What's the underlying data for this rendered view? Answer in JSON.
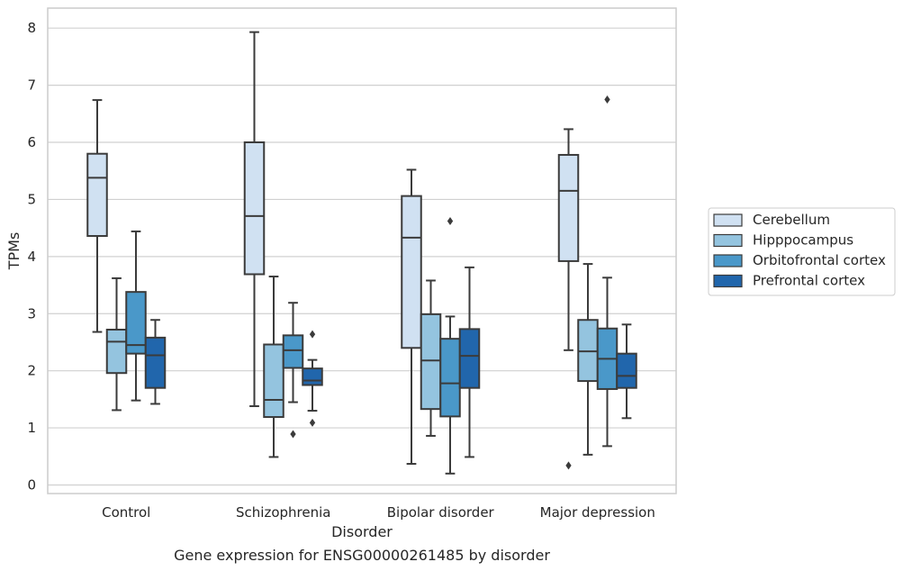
{
  "chart_data": {
    "type": "box",
    "caption": "Gene expression for ENSG00000261485 by disorder",
    "xlabel": "Disorder",
    "ylabel": "TPMs",
    "ylim": [
      -0.15,
      8.35
    ],
    "yticks": [
      0,
      1,
      2,
      3,
      4,
      5,
      6,
      7,
      8
    ],
    "grid": "horizontal",
    "legend_position": "right",
    "categories": [
      "Control",
      "Schizophrenia",
      "Bipolar disorder",
      "Major depression"
    ],
    "series": [
      {
        "name": "Cerebellum",
        "color": "#d0e1f2",
        "boxes": [
          {
            "whislo": 2.68,
            "q1": 4.36,
            "med": 5.38,
            "q3": 5.8,
            "whishi": 6.74,
            "fliers": []
          },
          {
            "whislo": 1.38,
            "q1": 3.69,
            "med": 4.71,
            "q3": 6.0,
            "whishi": 7.93,
            "fliers": []
          },
          {
            "whislo": 0.37,
            "q1": 2.4,
            "med": 4.33,
            "q3": 5.06,
            "whishi": 5.52,
            "fliers": []
          },
          {
            "whislo": 2.36,
            "q1": 3.92,
            "med": 5.15,
            "q3": 5.78,
            "whishi": 6.23,
            "fliers": [
              0.34
            ]
          }
        ]
      },
      {
        "name": "Hipppocampus",
        "color": "#94c4df",
        "boxes": [
          {
            "whislo": 1.31,
            "q1": 1.96,
            "med": 2.51,
            "q3": 2.72,
            "whishi": 3.62,
            "fliers": []
          },
          {
            "whislo": 0.49,
            "q1": 1.19,
            "med": 1.49,
            "q3": 2.46,
            "whishi": 3.65,
            "fliers": []
          },
          {
            "whislo": 0.86,
            "q1": 1.33,
            "med": 2.18,
            "q3": 2.99,
            "whishi": 3.58,
            "fliers": []
          },
          {
            "whislo": 0.53,
            "q1": 1.82,
            "med": 2.34,
            "q3": 2.89,
            "whishi": 3.87,
            "fliers": []
          }
        ]
      },
      {
        "name": "Orbitofrontal cortex",
        "color": "#4a98c9",
        "boxes": [
          {
            "whislo": 1.48,
            "q1": 2.3,
            "med": 2.45,
            "q3": 3.38,
            "whishi": 4.44,
            "fliers": []
          },
          {
            "whislo": 1.45,
            "q1": 2.05,
            "med": 2.36,
            "q3": 2.62,
            "whishi": 3.19,
            "fliers": [
              0.89
            ]
          },
          {
            "whislo": 0.2,
            "q1": 1.2,
            "med": 1.78,
            "q3": 2.56,
            "whishi": 2.95,
            "fliers": [
              4.62
            ]
          },
          {
            "whislo": 0.68,
            "q1": 1.68,
            "med": 2.21,
            "q3": 2.74,
            "whishi": 3.63,
            "fliers": [
              6.75
            ]
          }
        ]
      },
      {
        "name": "Prefrontal cortex",
        "color": "#2166ac",
        "boxes": [
          {
            "whislo": 1.42,
            "q1": 1.7,
            "med": 2.27,
            "q3": 2.58,
            "whishi": 2.89,
            "fliers": []
          },
          {
            "whislo": 1.3,
            "q1": 1.75,
            "med": 1.83,
            "q3": 2.04,
            "whishi": 2.19,
            "fliers": [
              2.64,
              1.09
            ]
          },
          {
            "whislo": 0.49,
            "q1": 1.7,
            "med": 2.26,
            "q3": 2.73,
            "whishi": 3.81,
            "fliers": []
          },
          {
            "whislo": 1.17,
            "q1": 1.7,
            "med": 1.91,
            "q3": 2.3,
            "whishi": 2.81,
            "fliers": []
          }
        ]
      }
    ]
  }
}
